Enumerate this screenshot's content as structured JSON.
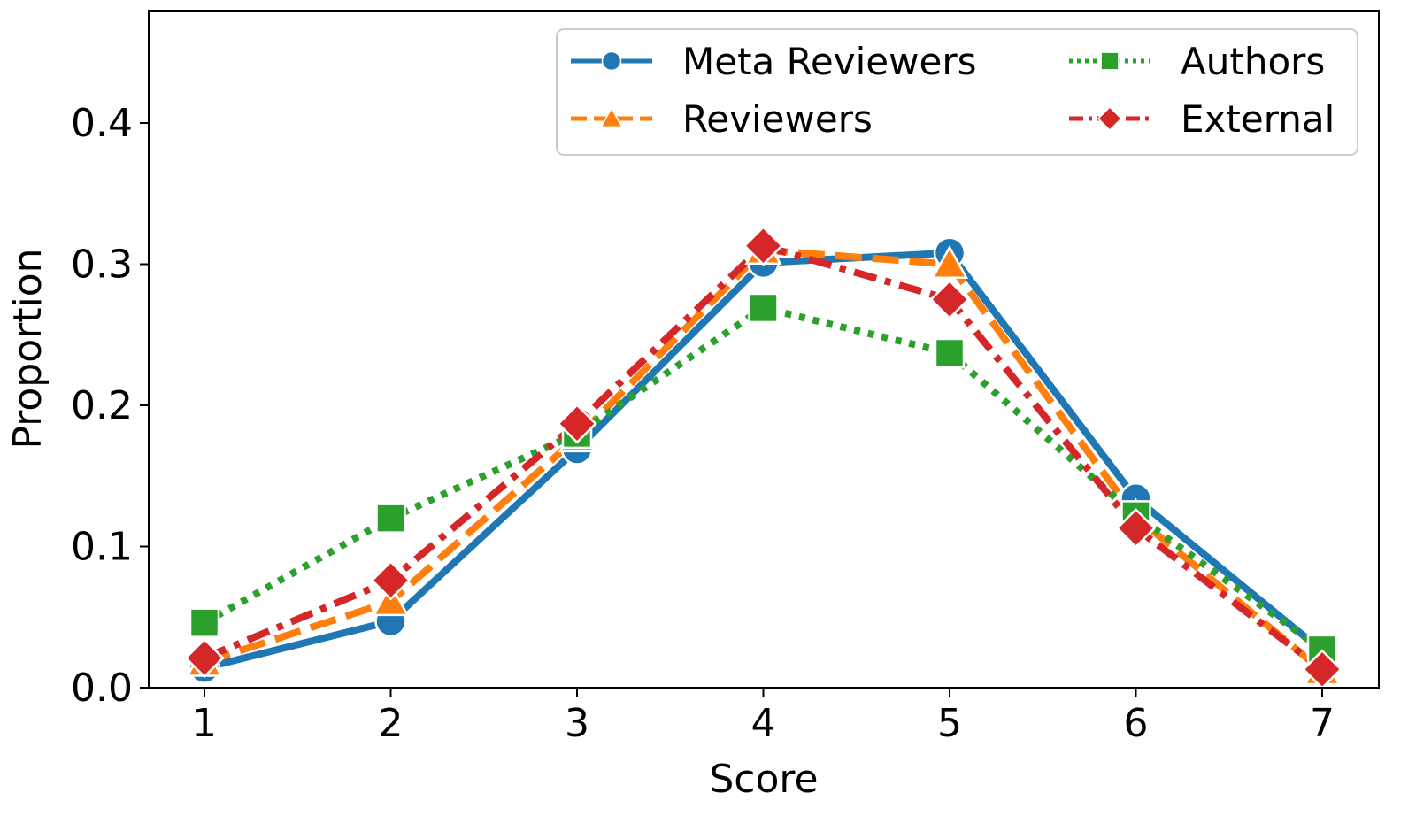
{
  "chart_data": {
    "type": "line",
    "title": "",
    "xlabel": "Score",
    "ylabel": "Proportion",
    "x": [
      1,
      2,
      3,
      4,
      5,
      6,
      7
    ],
    "xlim": [
      0.7,
      7.3
    ],
    "ylim": [
      0.0,
      0.48
    ],
    "xticks": [
      "1",
      "2",
      "3",
      "4",
      "5",
      "6",
      "7"
    ],
    "yticks": [
      "0.0",
      "0.1",
      "0.2",
      "0.3",
      "0.4"
    ],
    "ytick_values": [
      0.0,
      0.1,
      0.2,
      0.3,
      0.4
    ],
    "grid": false,
    "legend_position": "top-right",
    "series": [
      {
        "name": "Meta Reviewers",
        "color": "#1f77b4",
        "dash": "solid",
        "marker": "circle",
        "values": [
          0.014,
          0.047,
          0.169,
          0.301,
          0.308,
          0.134,
          0.026
        ]
      },
      {
        "name": "Reviewers",
        "color": "#ff7f0e",
        "dash": "dashed",
        "marker": "triangle",
        "values": [
          0.018,
          0.061,
          0.177,
          0.31,
          0.3,
          0.121,
          0.012
        ]
      },
      {
        "name": "Authors",
        "color": "#2ca02c",
        "dash": "dotted",
        "marker": "square",
        "values": [
          0.046,
          0.12,
          0.18,
          0.269,
          0.237,
          0.122,
          0.027
        ]
      },
      {
        "name": "External",
        "color": "#d62728",
        "dash": "dashdot",
        "marker": "diamond",
        "values": [
          0.021,
          0.076,
          0.187,
          0.313,
          0.275,
          0.113,
          0.013
        ]
      }
    ],
    "legend": [
      [
        "Meta Reviewers",
        "Authors"
      ],
      [
        "Reviewers",
        "External"
      ]
    ]
  }
}
